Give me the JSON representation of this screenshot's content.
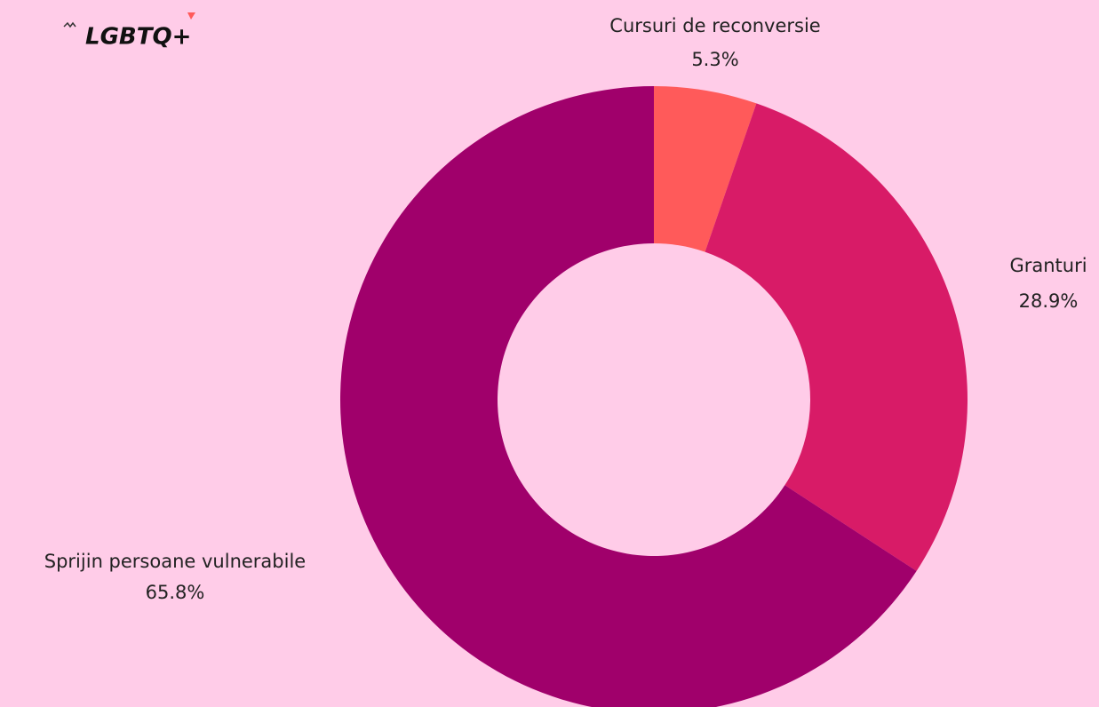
{
  "logo": "LGBTQ+",
  "chart_data": {
    "type": "donut",
    "categories": [
      "Cursuri de reconversie",
      "Granturi",
      "Sprijin persoane vulnerabile"
    ],
    "values": [
      5.3,
      28.9,
      65.8
    ],
    "value_labels": [
      "5.3%",
      "28.9%",
      "65.8%"
    ],
    "colors": [
      "#ff5a5a",
      "#d81b67",
      "#a0006b"
    ]
  }
}
